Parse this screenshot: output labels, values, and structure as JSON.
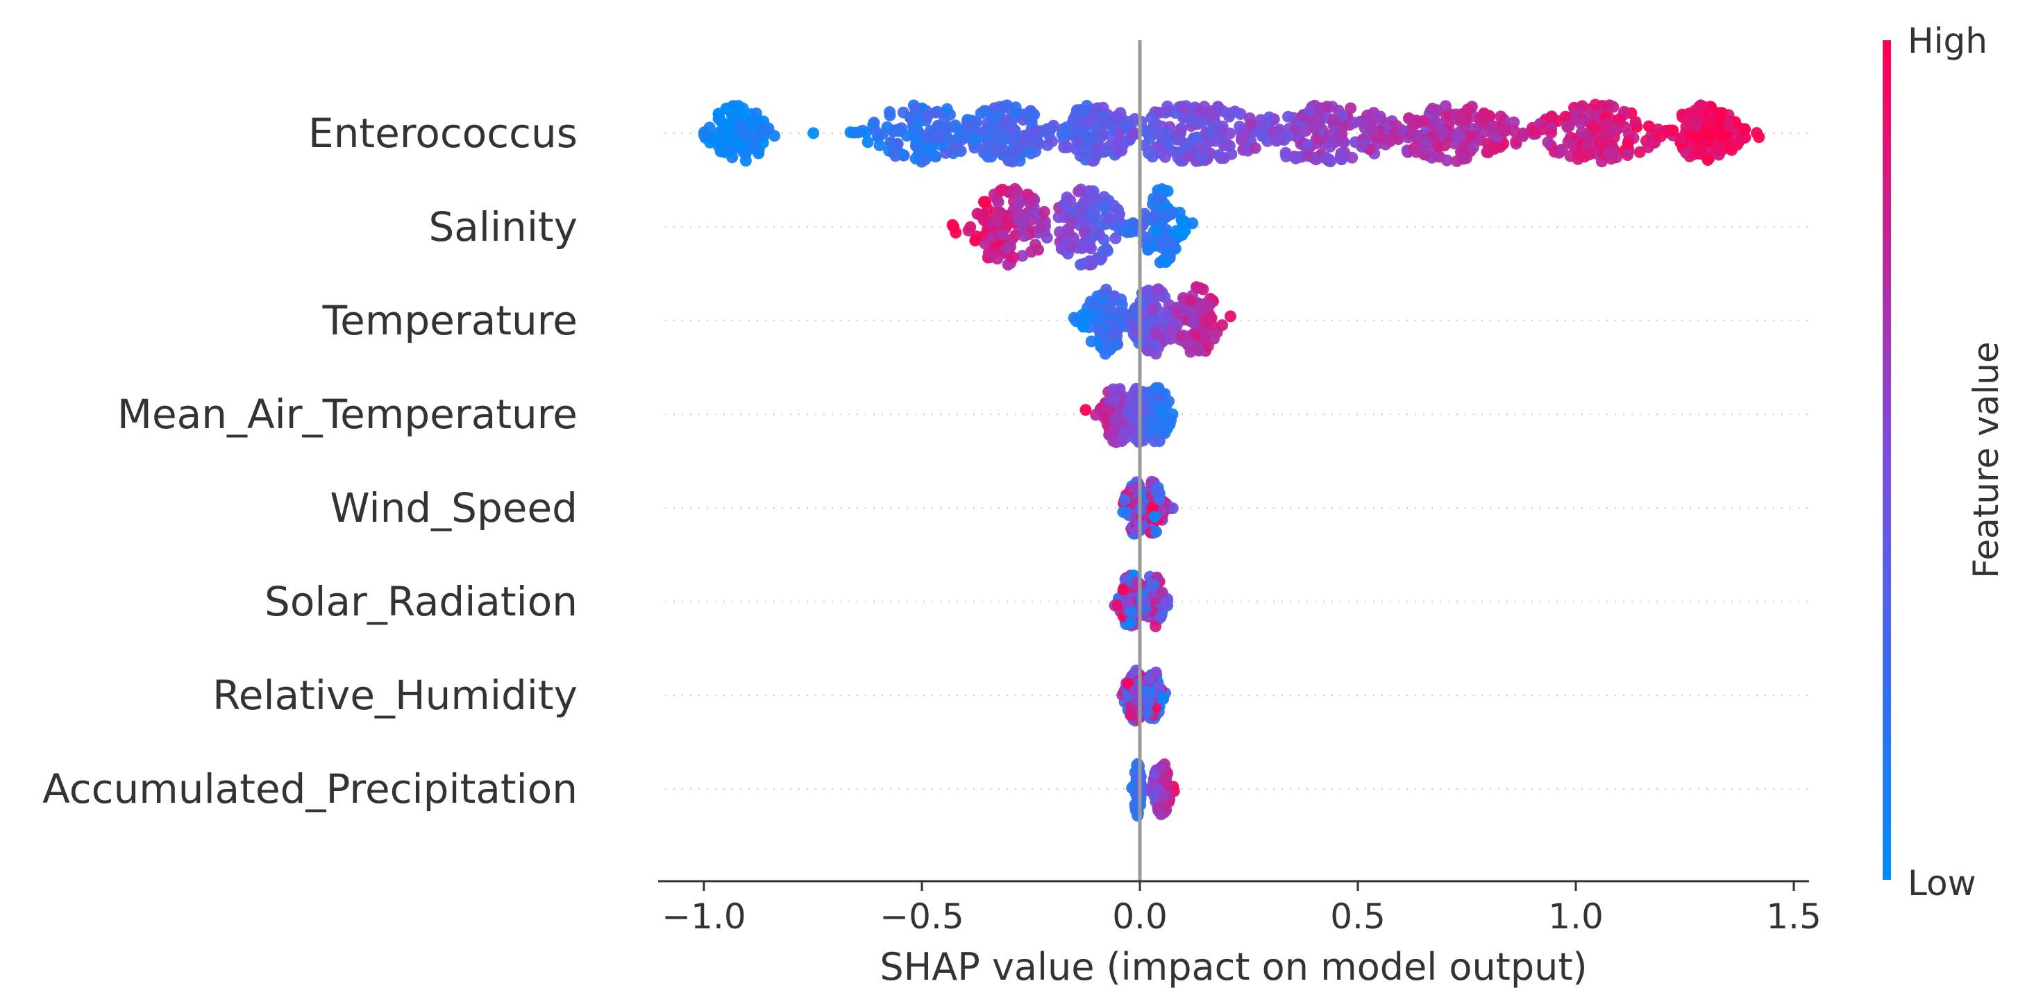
{
  "chart_data": {
    "type": "scatter",
    "subtype": "shap-beeswarm",
    "xlabel": "SHAP value (impact on model output)",
    "xlim": [
      -1.1,
      1.55
    ],
    "xticks": [
      {
        "value": -1.0,
        "label": "−1.0"
      },
      {
        "value": -0.5,
        "label": "−0.5"
      },
      {
        "value": 0.0,
        "label": "0.0"
      },
      {
        "value": 0.5,
        "label": "0.5"
      },
      {
        "value": 1.0,
        "label": "1.0"
      },
      {
        "value": 1.5,
        "label": "1.5"
      }
    ],
    "grid": false,
    "colorbar": {
      "title": "Feature value",
      "high_label": "High",
      "low_label": "Low",
      "low_color": "#008bfb",
      "high_color": "#ff0051"
    },
    "features": [
      {
        "name": "Enterococcus",
        "min": -1.0,
        "max": 1.42,
        "spread": 0.55,
        "correlation": "positive",
        "clusters": [
          [
            -0.92,
            0.07
          ],
          [
            -0.5,
            0.13
          ],
          [
            -0.3,
            0.1
          ],
          [
            -0.1,
            0.09
          ],
          [
            0.12,
            0.18
          ],
          [
            0.42,
            0.18
          ],
          [
            0.72,
            0.15
          ],
          [
            1.05,
            0.14
          ],
          [
            1.3,
            0.08
          ]
        ]
      },
      {
        "name": "Salinity",
        "min": -0.43,
        "max": 0.13,
        "spread": 0.85,
        "correlation": "negative",
        "clusters": [
          [
            -0.3,
            0.09
          ],
          [
            -0.12,
            0.08
          ],
          [
            0.05,
            0.045
          ]
        ]
      },
      {
        "name": "Temperature",
        "min": -0.17,
        "max": 0.24,
        "spread": 0.72,
        "correlation": "positive",
        "clusters": [
          [
            -0.08,
            0.05
          ],
          [
            0.03,
            0.05
          ],
          [
            0.13,
            0.05
          ]
        ]
      },
      {
        "name": "Mean_Air_Temperature",
        "min": -0.14,
        "max": 0.09,
        "spread": 0.55,
        "correlation": "negative",
        "clusters": [
          [
            -0.05,
            0.04
          ],
          [
            0.0,
            0.025
          ],
          [
            0.04,
            0.03
          ]
        ]
      },
      {
        "name": "Wind_Speed",
        "min": -0.06,
        "max": 0.08,
        "spread": 0.5,
        "correlation": "mixed",
        "clusters": [
          [
            -0.01,
            0.025
          ],
          [
            0.03,
            0.025
          ]
        ]
      },
      {
        "name": "Solar_Radiation",
        "min": -0.08,
        "max": 0.08,
        "spread": 0.5,
        "correlation": "mixed",
        "clusters": [
          [
            -0.02,
            0.03
          ],
          [
            0.03,
            0.025
          ]
        ]
      },
      {
        "name": "Relative_Humidity",
        "min": -0.09,
        "max": 0.07,
        "spread": 0.45,
        "correlation": "mixed",
        "clusters": [
          [
            -0.01,
            0.025
          ],
          [
            0.03,
            0.02
          ]
        ]
      },
      {
        "name": "Accumulated_Precipitation",
        "min": -0.03,
        "max": 0.09,
        "spread": 0.5,
        "correlation": "positive",
        "clusters": [
          [
            -0.005,
            0.008
          ],
          [
            0.05,
            0.02
          ]
        ]
      }
    ]
  }
}
